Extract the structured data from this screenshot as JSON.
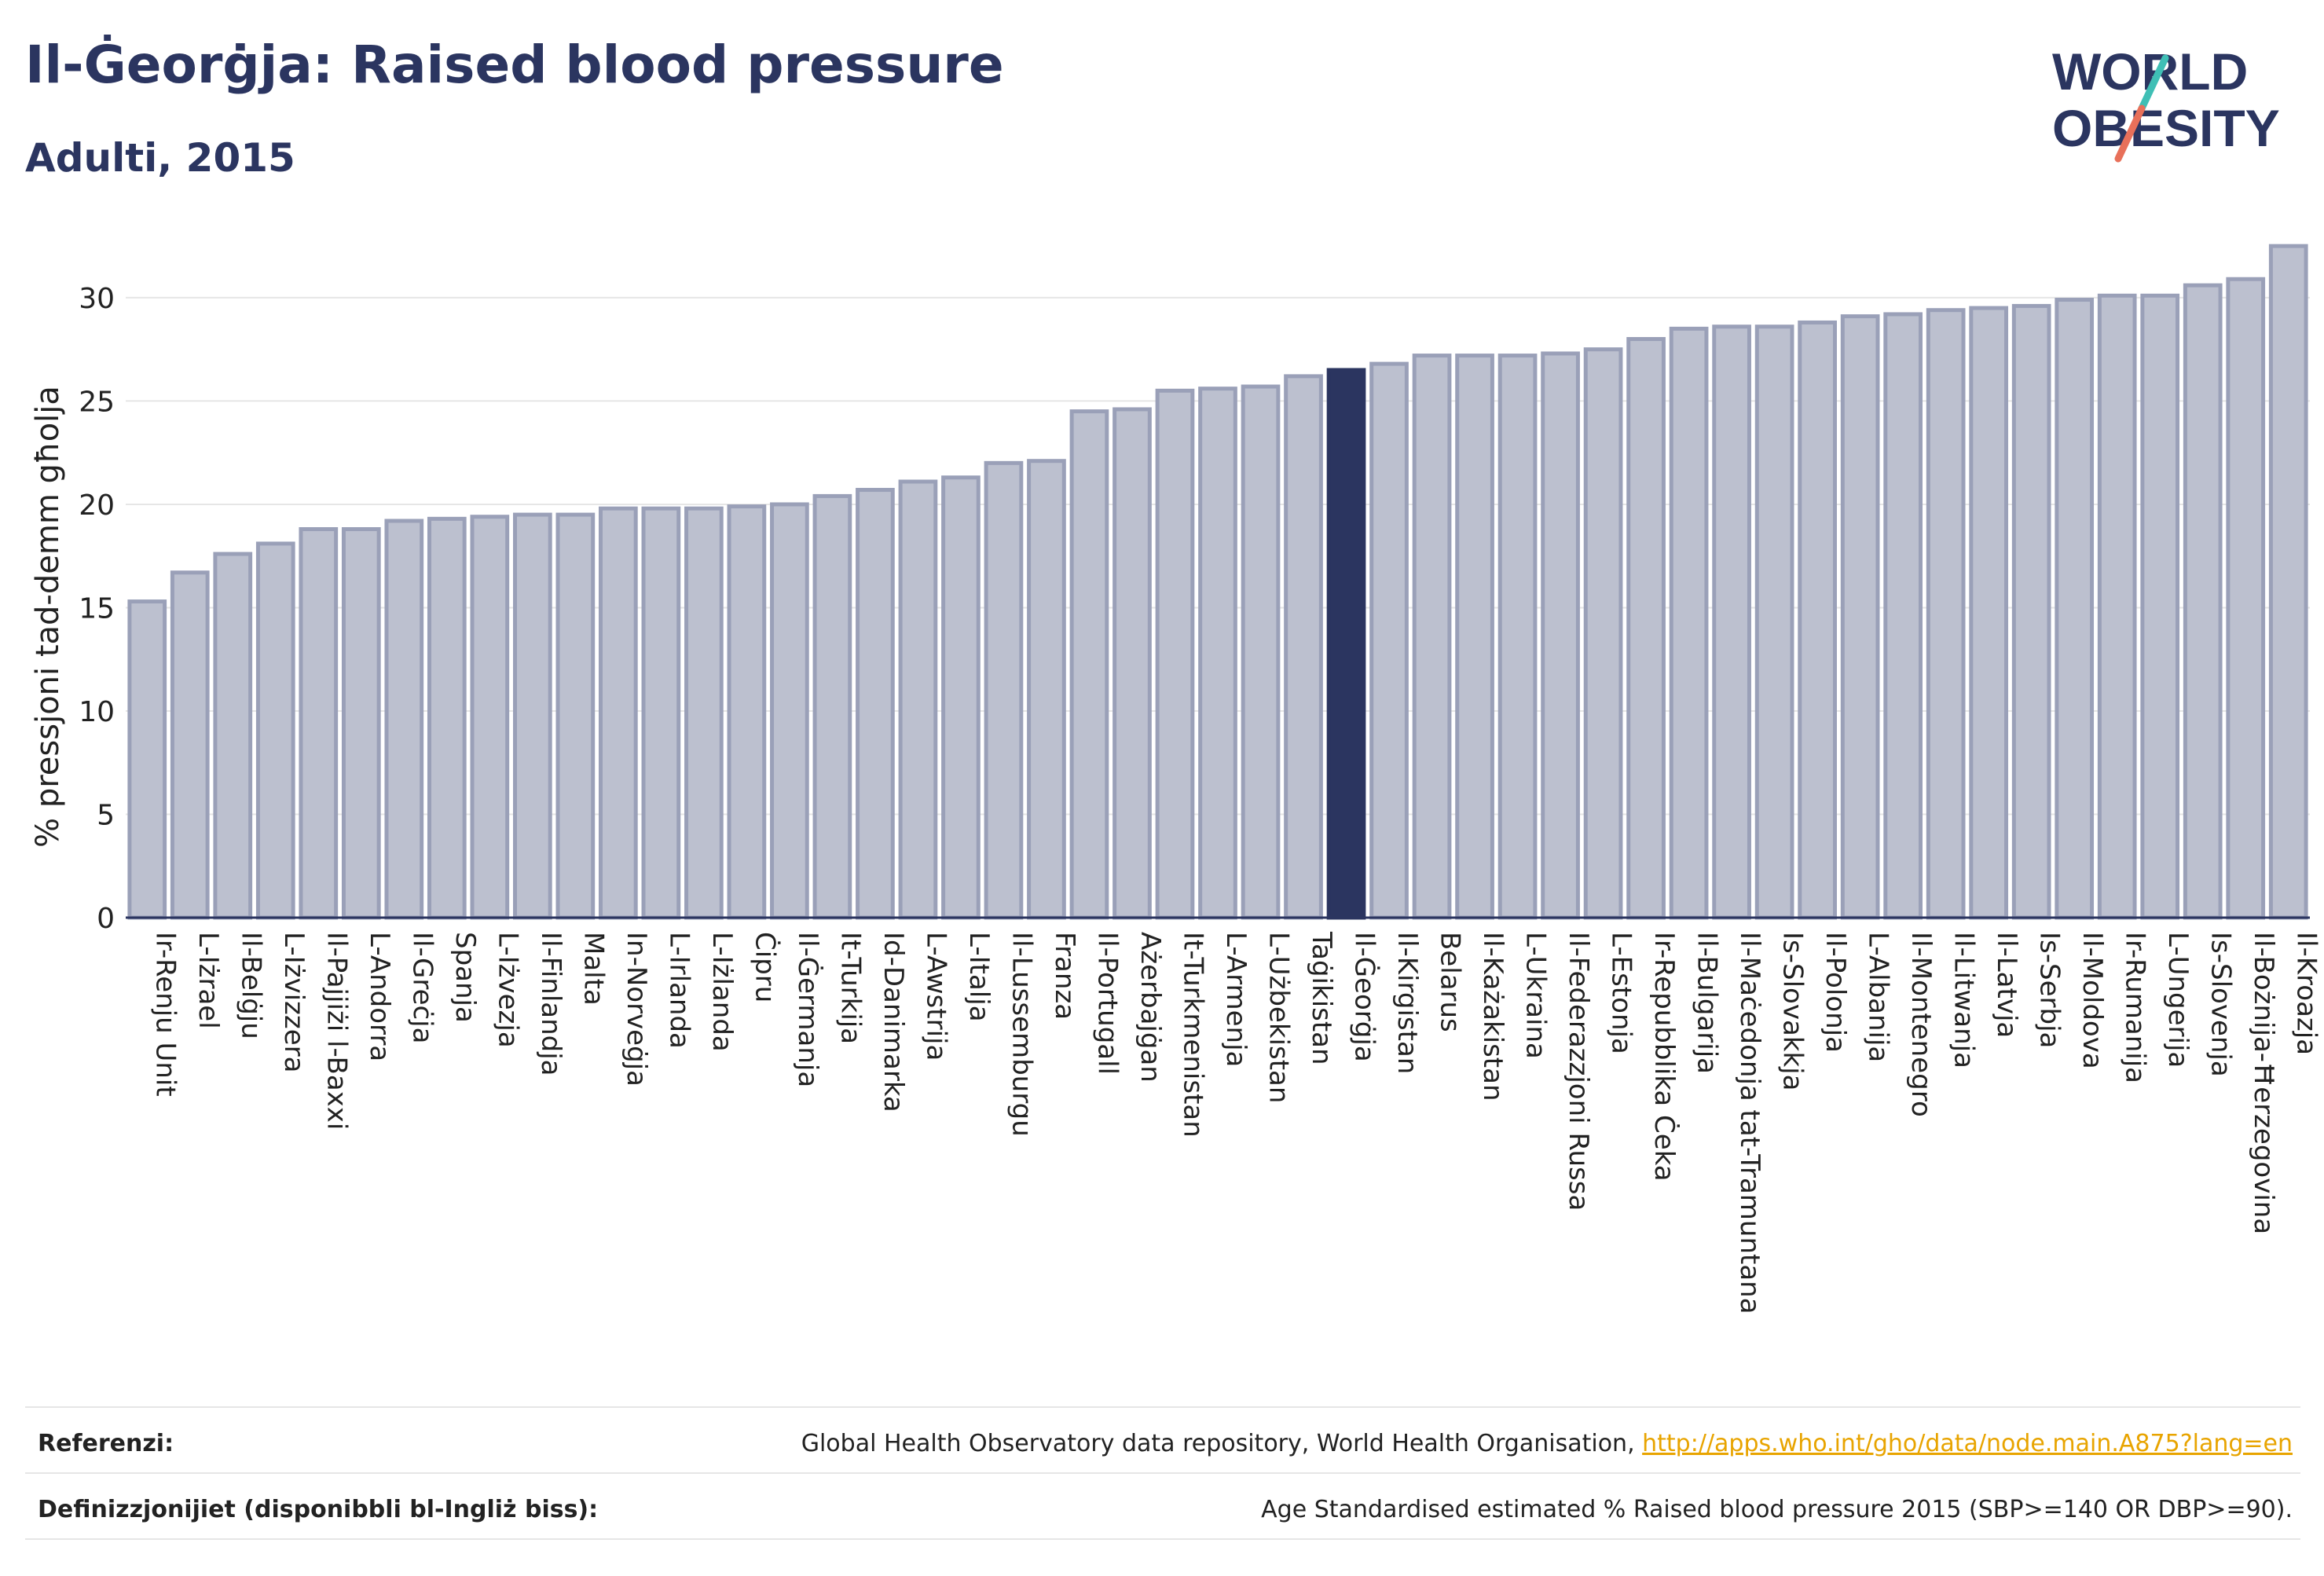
{
  "header": {
    "title": "Il-Ġeorġja: Raised blood pressure",
    "subtitle": "Adulti, 2015"
  },
  "logo": {
    "line1": "WORLD",
    "line2": "OBESITY",
    "colors": {
      "text": "#2b3560",
      "slash_teal": "#3fbfb5",
      "slash_red": "#e8705a"
    }
  },
  "chart_data": {
    "type": "bar",
    "ylabel": "% pressjoni tad-demm għolja",
    "xlabel": "",
    "ylim": [
      0,
      33
    ],
    "yticks": [
      0,
      5,
      10,
      15,
      20,
      25,
      30
    ],
    "grid": true,
    "highlight_category": "Il-Ġeorġja",
    "colors": {
      "bar": "#bcc0cf",
      "bar_edge": "#9aa0b8",
      "highlight": "#2b3560",
      "grid": "#e6e6e6",
      "axis": "#2b3560"
    },
    "categories": [
      "Ir-Renju Unit",
      "L-Iżrael",
      "Il-Belġju",
      "L-Iżvizzera",
      "Il-Pajjiżi l-Baxxi",
      "L-Andorra",
      "Il-Greċja",
      "Spanja",
      "L-Iżvezja",
      "Il-Finlandja",
      "Malta",
      "In-Norveġja",
      "L-Irlanda",
      "L-Iżlanda",
      "Ċipru",
      "Il-Ġermanja",
      "It-Turkija",
      "Id-Danimarka",
      "L-Awstrija",
      "L-Italja",
      "Il-Lussemburgu",
      "Franza",
      "Il-Portugall",
      "Ażerbajġan",
      "It-Turkmenistan",
      "L-Armenja",
      "L-Użbekistan",
      "Taġikistan",
      "Il-Ġeorġja",
      "Il-Kirgistan",
      "Belarus",
      "Il-Każakistan",
      "L-Ukraina",
      "Il-Federazzjoni Russa",
      "L-Estonja",
      "Ir-Repubblika Ċeka",
      "Il-Bulgarija",
      "Il-Maċedonja tat-Tramuntana",
      "Is-Slovakkja",
      "Il-Polonja",
      "L-Albanija",
      "Il-Montenegro",
      "Il-Litwanja",
      "Il-Latvja",
      "Is-Serbja",
      "Il-Moldova",
      "Ir-Rumanija",
      "L-Ungerija",
      "Is-Slovenja",
      "Il-Bożnija-Ħerzegovina",
      "Il-Kroazja"
    ],
    "values": [
      15.3,
      16.7,
      17.6,
      18.1,
      18.8,
      18.8,
      19.2,
      19.3,
      19.4,
      19.5,
      19.5,
      19.8,
      19.8,
      19.8,
      19.9,
      20.0,
      20.4,
      20.7,
      21.1,
      21.3,
      22.0,
      22.1,
      24.5,
      24.6,
      25.5,
      25.6,
      25.7,
      26.2,
      26.5,
      26.8,
      27.2,
      27.2,
      27.2,
      27.3,
      27.5,
      28.0,
      28.5,
      28.6,
      28.6,
      28.8,
      29.1,
      29.2,
      29.4,
      29.5,
      29.6,
      29.9,
      30.1,
      30.1,
      30.6,
      30.9,
      32.5
    ]
  },
  "footer": {
    "references_label": "Referenzi:",
    "references_text": "Global Health Observatory data repository, World Health Organisation, ",
    "references_link": "http://apps.who.int/gho/data/node.main.A875?lang=en",
    "definitions_label": "Definizzjonijiet (disponibbli bl-Ingliż biss):",
    "definitions_text": "Age Standardised estimated % Raised blood pressure 2015 (SBP>=140 OR DBP>=90)."
  }
}
